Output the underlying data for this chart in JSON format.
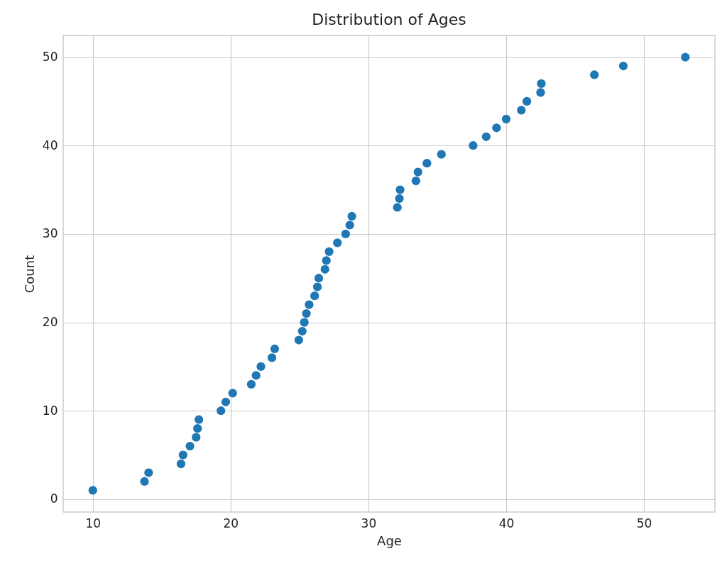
{
  "chart_data": {
    "type": "scatter",
    "title": "Distribution of Ages",
    "xlabel": "Age",
    "ylabel": "Count",
    "x": [
      10.0,
      13.75,
      14.05,
      16.4,
      16.55,
      17.05,
      17.5,
      17.6,
      17.7,
      19.3,
      19.65,
      20.15,
      21.5,
      21.85,
      22.2,
      23.0,
      23.2,
      24.95,
      25.2,
      25.35,
      25.5,
      25.7,
      26.1,
      26.3,
      26.4,
      26.85,
      26.95,
      27.15,
      27.75,
      28.35,
      28.65,
      28.8,
      32.1,
      32.25,
      32.3,
      33.45,
      33.6,
      34.25,
      35.3,
      37.6,
      38.55,
      39.3,
      40.0,
      41.1,
      41.5,
      42.5,
      42.55,
      46.4,
      48.5,
      53.0
    ],
    "values": [
      1,
      2,
      3,
      4,
      5,
      6,
      7,
      8,
      9,
      10,
      11,
      12,
      13,
      14,
      15,
      16,
      17,
      18,
      19,
      20,
      21,
      22,
      23,
      24,
      25,
      26,
      27,
      28,
      29,
      30,
      31,
      32,
      33,
      34,
      35,
      36,
      37,
      38,
      39,
      40,
      41,
      42,
      43,
      44,
      45,
      46,
      47,
      48,
      49,
      50
    ],
    "color": "#1f77b4",
    "marker": "circle",
    "xlim": [
      7.85,
      55.15
    ],
    "ylim": [
      -1.45,
      52.45
    ],
    "xticks": [
      10,
      20,
      30,
      40,
      50
    ],
    "yticks": [
      0,
      10,
      20,
      30,
      40,
      50
    ],
    "grid": true
  }
}
